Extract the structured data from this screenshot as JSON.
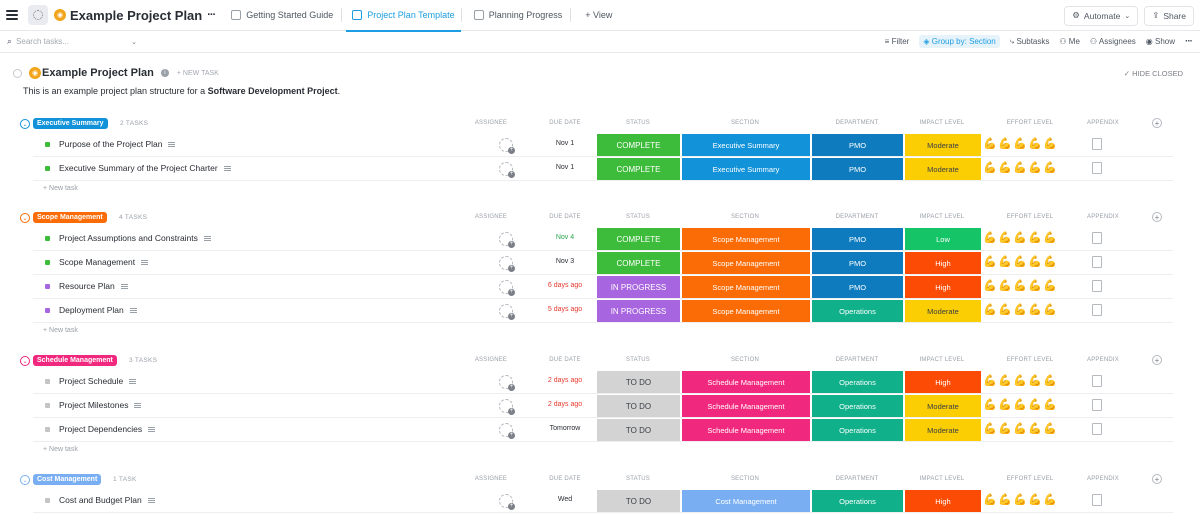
{
  "topbar": {
    "project_title": "Example Project Plan",
    "more": "···",
    "tabs": [
      {
        "label": "Getting Started Guide",
        "active": false
      },
      {
        "label": "Project Plan Template",
        "active": true
      },
      {
        "label": "Planning Progress",
        "active": false
      }
    ],
    "add_view": "+ View",
    "automate": "Automate",
    "share": "Share"
  },
  "toolbar": {
    "search_placeholder": "Search tasks...",
    "filter": "Filter",
    "group_by": "Group by: Section",
    "subtasks": "Subtasks",
    "me": "Me",
    "assignees": "Assignees",
    "show": "Show",
    "more": "···"
  },
  "list": {
    "title": "Example Project Plan",
    "new_task": "+ NEW TASK",
    "hide_closed": "✓ HIDE CLOSED",
    "description_pre": "This is an example project plan structure for a ",
    "description_bold": "Software Development Project",
    "description_post": "."
  },
  "columns": {
    "assignee": "ASSIGNEE",
    "due_date": "DUE DATE",
    "status": "STATUS",
    "section": "SECTION",
    "department": "DEPARTMENT",
    "impact": "IMPACT LEVEL",
    "effort": "EFFORT LEVEL",
    "appendix": "APPENDIX"
  },
  "colors": {
    "complete": "#3dbb3b",
    "in_progress": "#a865e0",
    "todo": "#d3d3d3",
    "exec_summary": "#1192d9",
    "scope": "#fb6c06",
    "schedule": "#f0287e",
    "cost": "#79aff2",
    "pmo": "#0f7bbf",
    "operations": "#0fb08a",
    "moderate": "#fbce03",
    "low": "#14c466",
    "high": "#fb4b04"
  },
  "groups": [
    {
      "name": "Executive Summary",
      "count": "2 TASKS",
      "color": "#1192d9",
      "tasks": [
        {
          "name": "Purpose of the Project Plan",
          "sq": "#3dbb3b",
          "due": "Nov 1",
          "due_color": "",
          "status": "COMPLETE",
          "status_color": "#3dbb3b",
          "section": "Executive Summary",
          "section_color": "#1192d9",
          "dept": "PMO",
          "dept_color": "#0f7bbf",
          "impact": "Moderate",
          "impact_color": "#fbce03",
          "effort": 3
        },
        {
          "name": "Executive Summary of the Project Charter",
          "sq": "#3dbb3b",
          "due": "Nov 1",
          "due_color": "",
          "status": "COMPLETE",
          "status_color": "#3dbb3b",
          "section": "Executive Summary",
          "section_color": "#1192d9",
          "dept": "PMO",
          "dept_color": "#0f7bbf",
          "impact": "Moderate",
          "impact_color": "#fbce03",
          "effort": 3
        }
      ]
    },
    {
      "name": "Scope Management",
      "count": "4 TASKS",
      "color": "#fb6c06",
      "tasks": [
        {
          "name": "Project Assumptions and Constraints",
          "sq": "#3dbb3b",
          "due": "Nov 4",
          "due_color": "green",
          "status": "COMPLETE",
          "status_color": "#3dbb3b",
          "section": "Scope Management",
          "section_color": "#fb6c06",
          "dept": "PMO",
          "dept_color": "#0f7bbf",
          "impact": "Low",
          "impact_color": "#14c466",
          "effort": 3
        },
        {
          "name": "Scope Management",
          "sq": "#3dbb3b",
          "due": "Nov 3",
          "due_color": "",
          "status": "COMPLETE",
          "status_color": "#3dbb3b",
          "section": "Scope Management",
          "section_color": "#fb6c06",
          "dept": "PMO",
          "dept_color": "#0f7bbf",
          "impact": "High",
          "impact_color": "#fb4b04",
          "effort": 3
        },
        {
          "name": "Resource Plan",
          "sq": "#a865e0",
          "due": "6 days ago",
          "due_color": "red",
          "status": "IN PROGRESS",
          "status_color": "#a865e0",
          "section": "Scope Management",
          "section_color": "#fb6c06",
          "dept": "PMO",
          "dept_color": "#0f7bbf",
          "impact": "High",
          "impact_color": "#fb4b04",
          "effort": 3
        },
        {
          "name": "Deployment Plan",
          "sq": "#a865e0",
          "due": "5 days ago",
          "due_color": "red",
          "status": "IN PROGRESS",
          "status_color": "#a865e0",
          "section": "Scope Management",
          "section_color": "#fb6c06",
          "dept": "Operations",
          "dept_color": "#0fb08a",
          "impact": "Moderate",
          "impact_color": "#fbce03",
          "effort": 3
        }
      ]
    },
    {
      "name": "Schedule Management",
      "count": "3 TASKS",
      "color": "#f0287e",
      "tasks": [
        {
          "name": "Project Schedule",
          "sq": "#c4c4c4",
          "due": "2 days ago",
          "due_color": "red",
          "status": "TO DO",
          "status_color": "#d3d3d3",
          "section": "Schedule Management",
          "section_color": "#f0287e",
          "dept": "Operations",
          "dept_color": "#0fb08a",
          "impact": "High",
          "impact_color": "#fb4b04",
          "effort": 5
        },
        {
          "name": "Project Milestones",
          "sq": "#c4c4c4",
          "due": "2 days ago",
          "due_color": "red",
          "status": "TO DO",
          "status_color": "#d3d3d3",
          "section": "Schedule Management",
          "section_color": "#f0287e",
          "dept": "Operations",
          "dept_color": "#0fb08a",
          "impact": "Moderate",
          "impact_color": "#fbce03",
          "effort": 4
        },
        {
          "name": "Project Dependencies",
          "sq": "#c4c4c4",
          "due": "Tomorrow",
          "due_color": "",
          "status": "TO DO",
          "status_color": "#d3d3d3",
          "section": "Schedule Management",
          "section_color": "#f0287e",
          "dept": "Operations",
          "dept_color": "#0fb08a",
          "impact": "Moderate",
          "impact_color": "#fbce03",
          "effort": 4
        }
      ]
    },
    {
      "name": "Cost Management",
      "count": "1 TASK",
      "color": "#79aff2",
      "tasks": [
        {
          "name": "Cost and Budget Plan",
          "sq": "#c4c4c4",
          "due": "Wed",
          "due_color": "",
          "status": "TO DO",
          "status_color": "#d3d3d3",
          "section": "Cost Management",
          "section_color": "#79aff2",
          "dept": "Operations",
          "dept_color": "#0fb08a",
          "impact": "High",
          "impact_color": "#fb4b04",
          "effort": 4
        }
      ]
    }
  ],
  "new_task_label": "+ New task"
}
